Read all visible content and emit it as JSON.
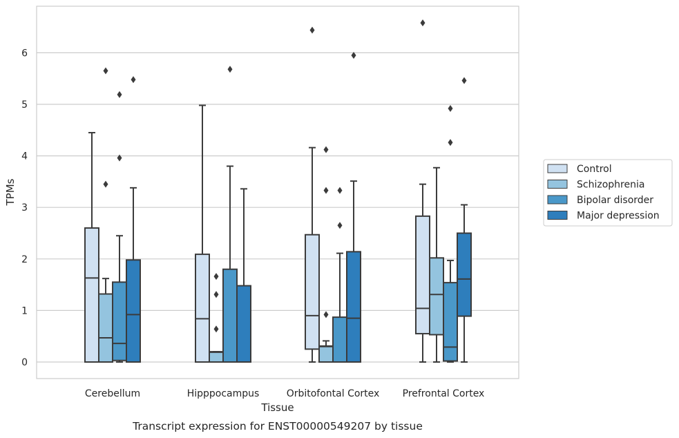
{
  "chart_data": {
    "type": "box",
    "xlabel": "Tissue",
    "ylabel": "TPMs",
    "caption": "Transcript expression for ENST00000549207 by tissue",
    "ylim": [
      -0.32,
      6.9
    ],
    "yticks": [
      0,
      1,
      2,
      3,
      4,
      5,
      6
    ],
    "grid": "horizontal",
    "legend_position": "right",
    "categories": [
      "Cerebellum",
      "Hipppocampus",
      "Orbitofontal Cortex",
      "Prefrontal Cortex"
    ],
    "series": [
      {
        "name": "Control",
        "color": "#d0e1f2",
        "boxes": [
          {
            "whislo": 0,
            "q1": 0,
            "med": 1.63,
            "q3": 2.6,
            "whishi": 4.45,
            "fliers": []
          },
          {
            "whislo": 0,
            "q1": 0,
            "med": 0.84,
            "q3": 2.09,
            "whishi": 4.98,
            "fliers": []
          },
          {
            "whislo": 0,
            "q1": 0.25,
            "med": 0.9,
            "q3": 2.47,
            "whishi": 4.16,
            "fliers": [
              6.44
            ]
          },
          {
            "whislo": 0,
            "q1": 0.55,
            "med": 1.04,
            "q3": 2.83,
            "whishi": 3.45,
            "fliers": [
              6.58
            ]
          }
        ]
      },
      {
        "name": "Schizophrenia",
        "color": "#94c4df",
        "boxes": [
          {
            "whislo": 0,
            "q1": 0,
            "med": 0.47,
            "q3": 1.32,
            "whishi": 1.62,
            "fliers": [
              3.45,
              5.65
            ]
          },
          {
            "whislo": 0,
            "q1": 0,
            "med": 0.19,
            "q3": 0.2,
            "whishi": 0.2,
            "fliers": [
              0.64,
              1.31,
              1.66
            ]
          },
          {
            "whislo": 0,
            "q1": 0,
            "med": 0.3,
            "q3": 0.31,
            "whishi": 0.41,
            "fliers": [
              0.92,
              3.33,
              4.12
            ]
          },
          {
            "whislo": 0,
            "q1": 0.53,
            "med": 1.31,
            "q3": 2.02,
            "whishi": 3.77,
            "fliers": []
          }
        ]
      },
      {
        "name": "Bipolar disorder",
        "color": "#4a98c9",
        "boxes": [
          {
            "whislo": 0,
            "q1": 0.03,
            "med": 0.36,
            "q3": 1.55,
            "whishi": 2.45,
            "fliers": [
              3.96,
              5.19
            ]
          },
          {
            "whislo": 0,
            "q1": 0,
            "med": 0,
            "q3": 1.8,
            "whishi": 3.8,
            "fliers": [
              5.68
            ]
          },
          {
            "whislo": 0,
            "q1": 0,
            "med": 0,
            "q3": 0.87,
            "whishi": 2.11,
            "fliers": [
              2.65,
              3.33
            ]
          },
          {
            "whislo": 0,
            "q1": 0.02,
            "med": 0.29,
            "q3": 1.54,
            "whishi": 1.97,
            "fliers": [
              4.26,
              4.92
            ]
          }
        ]
      },
      {
        "name": "Major depression",
        "color": "#2e7ebc",
        "boxes": [
          {
            "whislo": 0,
            "q1": 0,
            "med": 0.92,
            "q3": 1.98,
            "whishi": 3.38,
            "fliers": [
              5.48
            ]
          },
          {
            "whislo": 0,
            "q1": 0,
            "med": 0,
            "q3": 1.48,
            "whishi": 3.36,
            "fliers": []
          },
          {
            "whislo": 0,
            "q1": 0,
            "med": 0.85,
            "q3": 2.14,
            "whishi": 3.51,
            "fliers": [
              5.95
            ]
          },
          {
            "whislo": 0,
            "q1": 0.89,
            "med": 1.61,
            "q3": 2.5,
            "whishi": 3.05,
            "fliers": [
              5.46
            ]
          }
        ]
      }
    ]
  }
}
